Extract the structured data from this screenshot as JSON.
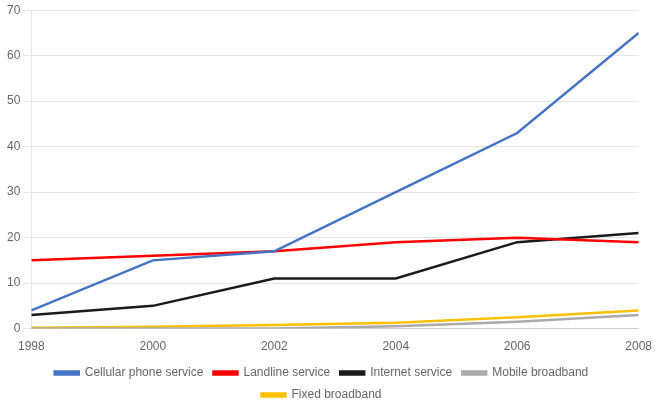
{
  "chart_data": {
    "type": "line",
    "x": [
      1998,
      2000,
      2002,
      2004,
      2006,
      2008
    ],
    "series": [
      {
        "name": "Cellular phone service",
        "color": "#4472C4",
        "values": [
          4,
          15,
          17,
          30,
          43,
          65
        ]
      },
      {
        "name": "Landline service",
        "color": "#FF0000",
        "values": [
          15,
          16,
          17,
          19,
          20,
          19
        ]
      },
      {
        "name": "Internet service",
        "color": "#1A1A1A",
        "values": [
          3,
          5,
          11,
          11,
          19,
          21
        ]
      },
      {
        "name": "Mobile broadband",
        "color": "#AAAAAA",
        "values": [
          0,
          0,
          0,
          0.5,
          1.5,
          3
        ]
      },
      {
        "name": "Fixed broadband",
        "color": "#FFC000",
        "values": [
          0.2,
          0.4,
          0.8,
          1.3,
          2.5,
          4
        ]
      }
    ],
    "xlim": [
      1998,
      2008
    ],
    "xticks": [
      1998,
      2000,
      2002,
      2004,
      2006,
      2008
    ],
    "ylim": [
      0,
      70
    ],
    "yticks": [
      0,
      10,
      20,
      30,
      40,
      50,
      60,
      70
    ],
    "grid": true,
    "legend": "bottom"
  }
}
